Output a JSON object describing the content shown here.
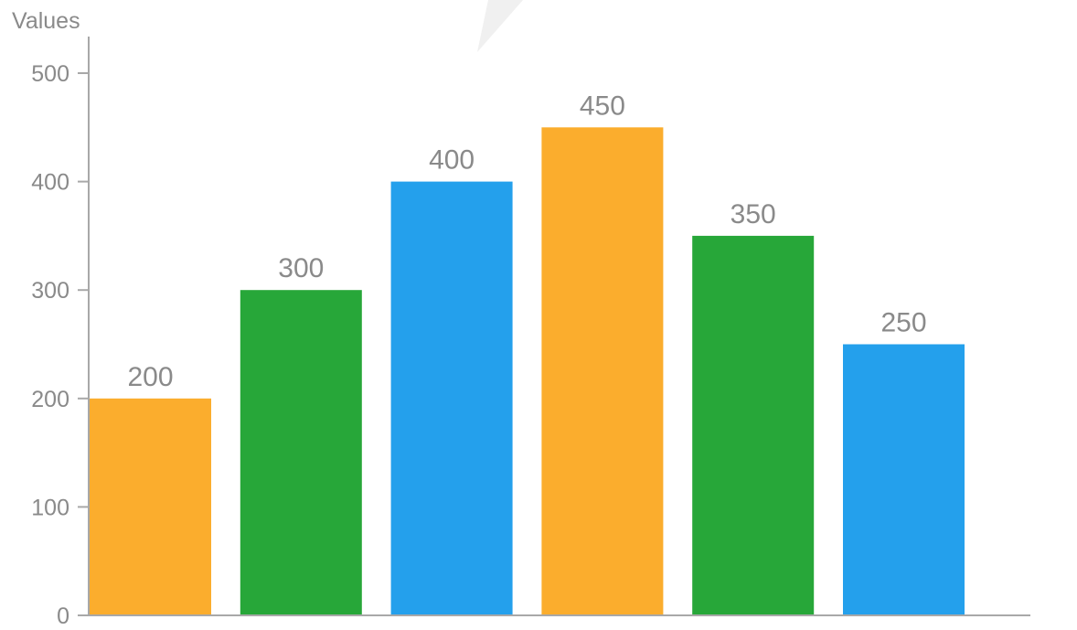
{
  "chart_data": {
    "type": "bar",
    "ylabel": "Values",
    "xlabel": "",
    "ylim": [
      0,
      500
    ],
    "yticks": [
      0,
      100,
      200,
      300,
      400,
      500
    ],
    "grid": false,
    "values": [
      200,
      300,
      400,
      450,
      350,
      250
    ],
    "colors": [
      "#fbad2d",
      "#27a739",
      "#24a0ec",
      "#fbad2d",
      "#27a739",
      "#24a0ec"
    ],
    "data_labels": [
      "200",
      "300",
      "400",
      "450",
      "350",
      "250"
    ],
    "tick_labels": [
      "0",
      "100",
      "200",
      "300",
      "400",
      "500"
    ],
    "axis_color": "#a8a8a8",
    "text_color": "#8a8a8a"
  }
}
